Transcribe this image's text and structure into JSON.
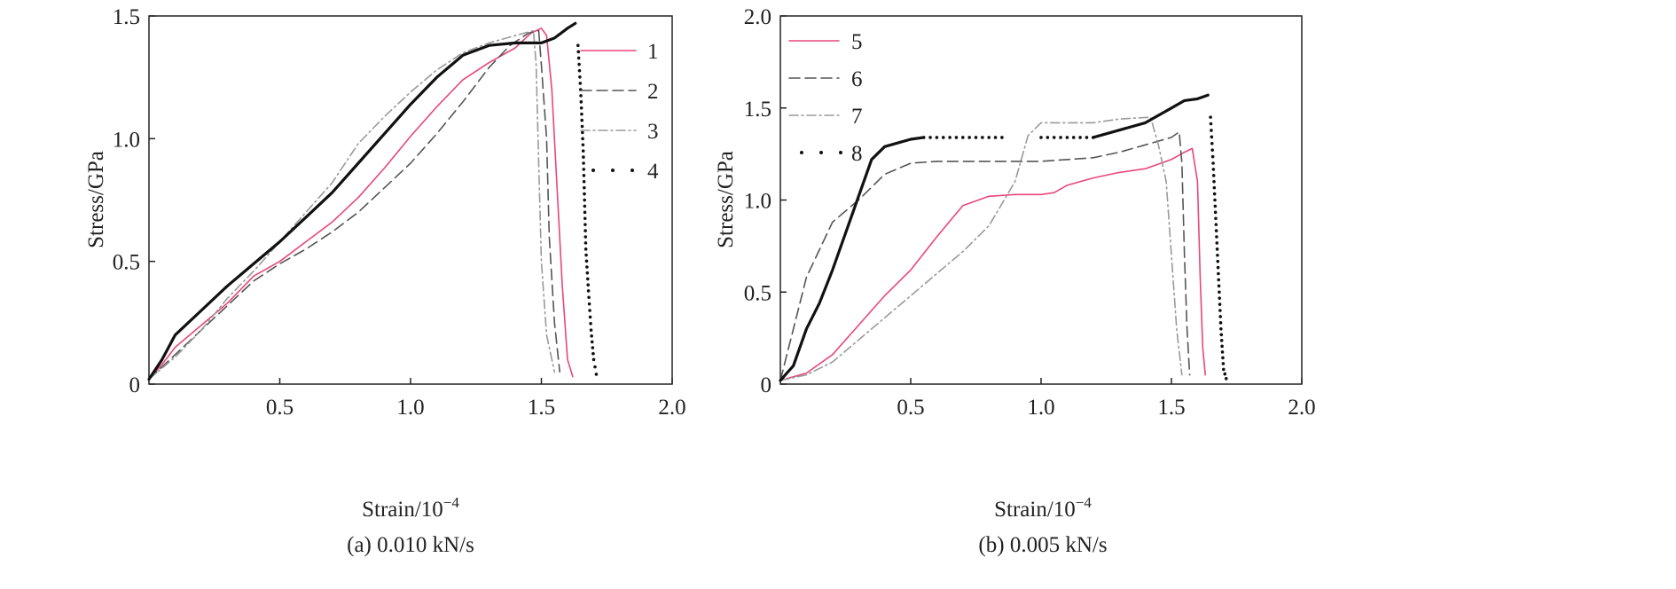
{
  "chart_data": [
    {
      "type": "line",
      "caption": "(a) 0.010 kN/s",
      "xlabel": "Strain/10",
      "xlabel_exp": "−4",
      "ylabel": "Stress/GPa",
      "xlim": [
        0,
        2.0
      ],
      "ylim": [
        0,
        1.5
      ],
      "x_ticks": [
        0.5,
        1.0,
        1.5,
        2.0
      ],
      "x_tick_labels": [
        "0.5",
        "1.0",
        "1.5",
        "2.0"
      ],
      "y_ticks": [
        0,
        0.5,
        1.0,
        1.5
      ],
      "y_tick_labels": [
        "0",
        "0.5",
        "1.0",
        "1.5"
      ],
      "legend_position": "top-right",
      "series": [
        {
          "name": "1",
          "style": "solid-thin",
          "color": "#e8467c",
          "points": [
            [
              0,
              0.02
            ],
            [
              0.05,
              0.08
            ],
            [
              0.1,
              0.15
            ],
            [
              0.2,
              0.24
            ],
            [
              0.3,
              0.33
            ],
            [
              0.4,
              0.44
            ],
            [
              0.5,
              0.5
            ],
            [
              0.6,
              0.58
            ],
            [
              0.7,
              0.66
            ],
            [
              0.8,
              0.76
            ],
            [
              0.9,
              0.88
            ],
            [
              1.0,
              1.01
            ],
            [
              1.1,
              1.13
            ],
            [
              1.2,
              1.24
            ],
            [
              1.3,
              1.31
            ],
            [
              1.4,
              1.37
            ],
            [
              1.46,
              1.43
            ],
            [
              1.5,
              1.45
            ],
            [
              1.52,
              1.42
            ],
            [
              1.54,
              1.2
            ],
            [
              1.56,
              0.8
            ],
            [
              1.58,
              0.4
            ],
            [
              1.6,
              0.1
            ],
            [
              1.62,
              0.03
            ]
          ]
        },
        {
          "name": "2",
          "style": "dashed",
          "color": "#555555",
          "points": [
            [
              0,
              0.02
            ],
            [
              0.1,
              0.12
            ],
            [
              0.2,
              0.22
            ],
            [
              0.3,
              0.32
            ],
            [
              0.4,
              0.42
            ],
            [
              0.5,
              0.49
            ],
            [
              0.6,
              0.55
            ],
            [
              0.7,
              0.62
            ],
            [
              0.8,
              0.7
            ],
            [
              0.9,
              0.8
            ],
            [
              1.0,
              0.9
            ],
            [
              1.1,
              1.02
            ],
            [
              1.2,
              1.15
            ],
            [
              1.3,
              1.29
            ],
            [
              1.38,
              1.38
            ],
            [
              1.45,
              1.43
            ],
            [
              1.49,
              1.44
            ],
            [
              1.5,
              1.3
            ],
            [
              1.52,
              1.0
            ],
            [
              1.53,
              0.6
            ],
            [
              1.55,
              0.25
            ],
            [
              1.57,
              0.05
            ]
          ]
        },
        {
          "name": "3",
          "style": "dash-dot",
          "color": "#9a9a9a",
          "points": [
            [
              0,
              0.02
            ],
            [
              0.1,
              0.11
            ],
            [
              0.2,
              0.22
            ],
            [
              0.3,
              0.35
            ],
            [
              0.4,
              0.46
            ],
            [
              0.5,
              0.58
            ],
            [
              0.6,
              0.7
            ],
            [
              0.7,
              0.82
            ],
            [
              0.8,
              0.98
            ],
            [
              0.9,
              1.09
            ],
            [
              1.0,
              1.19
            ],
            [
              1.1,
              1.28
            ],
            [
              1.2,
              1.35
            ],
            [
              1.3,
              1.39
            ],
            [
              1.4,
              1.42
            ],
            [
              1.47,
              1.44
            ],
            [
              1.48,
              1.3
            ],
            [
              1.49,
              0.9
            ],
            [
              1.5,
              0.5
            ],
            [
              1.52,
              0.2
            ],
            [
              1.55,
              0.05
            ]
          ]
        },
        {
          "name": "4",
          "style": "solid-thick",
          "color": "#111111",
          "points": [
            [
              0,
              0.02
            ],
            [
              0.05,
              0.1
            ],
            [
              0.1,
              0.2
            ],
            [
              0.2,
              0.3
            ],
            [
              0.3,
              0.4
            ],
            [
              0.4,
              0.49
            ],
            [
              0.5,
              0.58
            ],
            [
              0.6,
              0.68
            ],
            [
              0.7,
              0.78
            ],
            [
              0.8,
              0.9
            ],
            [
              0.9,
              1.02
            ],
            [
              1.0,
              1.14
            ],
            [
              1.1,
              1.25
            ],
            [
              1.2,
              1.34
            ],
            [
              1.3,
              1.38
            ],
            [
              1.4,
              1.39
            ],
            [
              1.5,
              1.39
            ],
            [
              1.55,
              1.41
            ],
            [
              1.6,
              1.45
            ],
            [
              1.63,
              1.47
            ]
          ]
        },
        {
          "name": "4",
          "style": "dotted",
          "color": "#111111",
          "points": [
            [
              1.64,
              1.38
            ],
            [
              1.65,
              1.2
            ],
            [
              1.66,
              0.95
            ],
            [
              1.665,
              0.75
            ],
            [
              1.67,
              0.55
            ],
            [
              1.68,
              0.38
            ],
            [
              1.69,
              0.22
            ],
            [
              1.7,
              0.1
            ],
            [
              1.71,
              0.04
            ]
          ]
        }
      ]
    },
    {
      "type": "line",
      "caption": "(b) 0.005 kN/s",
      "xlabel": "Strain/10",
      "xlabel_exp": "−4",
      "ylabel": "Stress/GPa",
      "xlim": [
        0,
        2.0
      ],
      "ylim": [
        0,
        2.0
      ],
      "x_ticks": [
        0.5,
        1.0,
        1.5,
        2.0
      ],
      "x_tick_labels": [
        "0.5",
        "1.0",
        "1.5",
        "2.0"
      ],
      "y_ticks": [
        0,
        0.5,
        1.0,
        1.5,
        2.0
      ],
      "y_tick_labels": [
        "0",
        "0.5",
        "1.0",
        "1.5",
        "2.0"
      ],
      "legend_position": "top-left",
      "series": [
        {
          "name": "5",
          "style": "solid-thin",
          "color": "#e8467c",
          "points": [
            [
              0,
              0.02
            ],
            [
              0.1,
              0.06
            ],
            [
              0.2,
              0.16
            ],
            [
              0.3,
              0.32
            ],
            [
              0.4,
              0.48
            ],
            [
              0.5,
              0.62
            ],
            [
              0.6,
              0.8
            ],
            [
              0.7,
              0.97
            ],
            [
              0.8,
              1.02
            ],
            [
              0.9,
              1.03
            ],
            [
              1.0,
              1.03
            ],
            [
              1.05,
              1.04
            ],
            [
              1.1,
              1.08
            ],
            [
              1.2,
              1.12
            ],
            [
              1.3,
              1.15
            ],
            [
              1.4,
              1.17
            ],
            [
              1.5,
              1.22
            ],
            [
              1.55,
              1.26
            ],
            [
              1.58,
              1.28
            ],
            [
              1.6,
              1.1
            ],
            [
              1.61,
              0.6
            ],
            [
              1.62,
              0.2
            ],
            [
              1.63,
              0.05
            ]
          ]
        },
        {
          "name": "6",
          "style": "dashed",
          "color": "#555555",
          "points": [
            [
              0,
              0.02
            ],
            [
              0.05,
              0.3
            ],
            [
              0.1,
              0.58
            ],
            [
              0.2,
              0.88
            ],
            [
              0.3,
              1.0
            ],
            [
              0.4,
              1.14
            ],
            [
              0.5,
              1.2
            ],
            [
              0.6,
              1.21
            ],
            [
              0.8,
              1.21
            ],
            [
              1.0,
              1.21
            ],
            [
              1.2,
              1.23
            ],
            [
              1.3,
              1.26
            ],
            [
              1.4,
              1.3
            ],
            [
              1.5,
              1.34
            ],
            [
              1.53,
              1.37
            ],
            [
              1.54,
              1.2
            ],
            [
              1.55,
              0.7
            ],
            [
              1.56,
              0.3
            ],
            [
              1.57,
              0.05
            ]
          ]
        },
        {
          "name": "7",
          "style": "dash-dot",
          "color": "#9a9a9a",
          "points": [
            [
              0,
              0.02
            ],
            [
              0.1,
              0.05
            ],
            [
              0.2,
              0.12
            ],
            [
              0.3,
              0.24
            ],
            [
              0.4,
              0.36
            ],
            [
              0.5,
              0.48
            ],
            [
              0.6,
              0.6
            ],
            [
              0.7,
              0.72
            ],
            [
              0.8,
              0.86
            ],
            [
              0.9,
              1.1
            ],
            [
              0.95,
              1.35
            ],
            [
              1.0,
              1.42
            ],
            [
              1.1,
              1.42
            ],
            [
              1.2,
              1.42
            ],
            [
              1.3,
              1.44
            ],
            [
              1.42,
              1.45
            ],
            [
              1.45,
              1.3
            ],
            [
              1.48,
              1.1
            ],
            [
              1.5,
              0.7
            ],
            [
              1.52,
              0.3
            ],
            [
              1.54,
              0.05
            ]
          ]
        },
        {
          "name": "8",
          "style": "solid-thick",
          "color": "#111111",
          "points": [
            [
              0,
              0.02
            ],
            [
              0.05,
              0.1
            ],
            [
              0.1,
              0.3
            ],
            [
              0.15,
              0.44
            ],
            [
              0.2,
              0.62
            ],
            [
              0.25,
              0.82
            ],
            [
              0.3,
              1.02
            ],
            [
              0.35,
              1.22
            ],
            [
              0.4,
              1.29
            ],
            [
              0.5,
              1.33
            ],
            [
              0.55,
              1.34
            ]
          ]
        },
        {
          "name": "8",
          "style": "dotted",
          "color": "#111111",
          "points": [
            [
              0.55,
              1.34
            ],
            [
              0.6,
              1.34
            ],
            [
              0.65,
              1.34
            ],
            [
              0.7,
              1.34
            ],
            [
              0.75,
              1.34
            ],
            [
              0.8,
              1.34
            ],
            [
              0.85,
              1.34
            ]
          ]
        },
        {
          "name": "8",
          "style": "dotted",
          "color": "#111111",
          "points": [
            [
              1.0,
              1.34
            ],
            [
              1.05,
              1.34
            ],
            [
              1.1,
              1.34
            ],
            [
              1.15,
              1.34
            ],
            [
              1.2,
              1.34
            ]
          ]
        },
        {
          "name": "8",
          "style": "solid-thick",
          "color": "#111111",
          "points": [
            [
              1.2,
              1.34
            ],
            [
              1.3,
              1.38
            ],
            [
              1.4,
              1.42
            ],
            [
              1.5,
              1.5
            ],
            [
              1.55,
              1.54
            ],
            [
              1.6,
              1.55
            ],
            [
              1.64,
              1.57
            ]
          ]
        },
        {
          "name": "8",
          "style": "dotted",
          "color": "#111111",
          "points": [
            [
              1.65,
              1.45
            ],
            [
              1.66,
              1.2
            ],
            [
              1.67,
              0.9
            ],
            [
              1.68,
              0.6
            ],
            [
              1.69,
              0.3
            ],
            [
              1.7,
              0.08
            ],
            [
              1.71,
              0.03
            ]
          ]
        }
      ]
    }
  ]
}
